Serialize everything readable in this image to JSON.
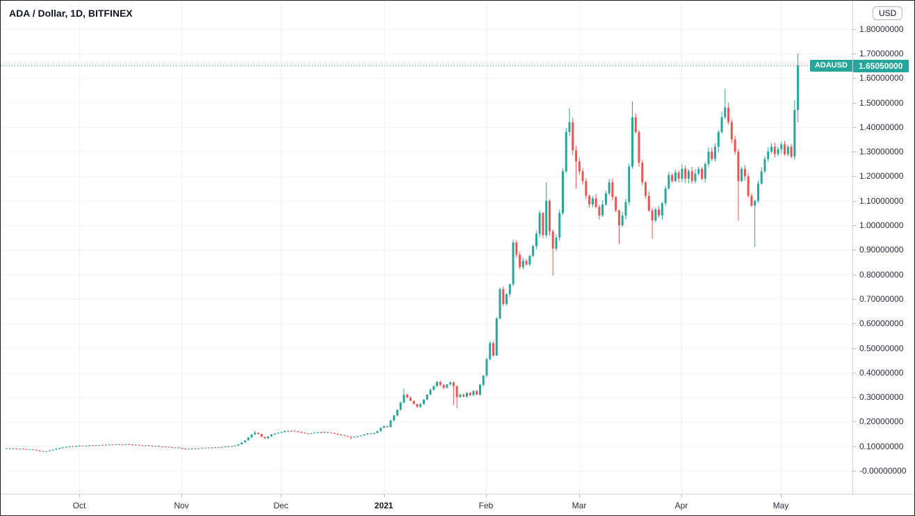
{
  "header": {
    "symbol_title": "ADA / Dollar, 1D, BITFINEX"
  },
  "price_scale": {
    "currency_badge": "USD",
    "tick_labels": [
      "1.80000000",
      "1.70000000",
      "1.60000000",
      "1.50000000",
      "1.40000000",
      "1.30000000",
      "1.20000000",
      "1.10000000",
      "1.00000000",
      "0.90000000",
      "0.80000000",
      "0.70000000",
      "0.60000000",
      "0.50000000",
      "0.40000000",
      "0.30000000",
      "0.20000000",
      "0.10000000",
      "-0.00000000"
    ],
    "tick_prices": [
      1.8,
      1.7,
      1.6,
      1.5,
      1.4,
      1.3,
      1.2,
      1.1,
      1.0,
      0.9,
      0.8,
      0.7,
      0.6,
      0.5,
      0.4,
      0.3,
      0.2,
      0.1,
      0.0
    ],
    "last_price": {
      "symbol_label": "ADAUSD",
      "value_label": "1.65050000",
      "price": 1.6505
    }
  },
  "time_scale": {
    "ticks": [
      {
        "label": "Oct",
        "index": 22,
        "bold": false
      },
      {
        "label": "Nov",
        "index": 53,
        "bold": false
      },
      {
        "label": "Dec",
        "index": 83,
        "bold": false
      },
      {
        "label": "2021",
        "index": 114,
        "bold": true
      },
      {
        "label": "Feb",
        "index": 145,
        "bold": false
      },
      {
        "label": "Mar",
        "index": 173,
        "bold": false
      },
      {
        "label": "Apr",
        "index": 204,
        "bold": false
      },
      {
        "label": "May",
        "index": 234,
        "bold": false
      }
    ]
  },
  "chart_data": {
    "type": "candlestick",
    "title": "ADA / Dollar, 1D, BITFINEX",
    "symbol": "ADAUSD",
    "exchange": "BITFINEX",
    "interval": "1D",
    "quote_currency": "USD",
    "start_date": "2020-09-09",
    "frequency": "daily",
    "ylim": [
      0.0,
      1.8
    ],
    "grid": true,
    "legend_position": "top-left",
    "last_close": 1.6505,
    "up_color": "#26a69a",
    "down_color": "#ef5350",
    "grid_color": "#f0f3fa",
    "price_line_color": "#26a69a",
    "closes": [
      0.092,
      0.09,
      0.091,
      0.089,
      0.09,
      0.088,
      0.086,
      0.087,
      0.085,
      0.083,
      0.08,
      0.078,
      0.08,
      0.083,
      0.086,
      0.09,
      0.093,
      0.095,
      0.097,
      0.1,
      0.098,
      0.101,
      0.103,
      0.101,
      0.102,
      0.104,
      0.103,
      0.105,
      0.104,
      0.106,
      0.105,
      0.107,
      0.106,
      0.108,
      0.107,
      0.106,
      0.108,
      0.107,
      0.105,
      0.106,
      0.104,
      0.103,
      0.104,
      0.102,
      0.1,
      0.101,
      0.099,
      0.097,
      0.098,
      0.096,
      0.094,
      0.095,
      0.093,
      0.09,
      0.088,
      0.089,
      0.091,
      0.09,
      0.092,
      0.094,
      0.093,
      0.095,
      0.094,
      0.096,
      0.095,
      0.097,
      0.099,
      0.098,
      0.1,
      0.103,
      0.108,
      0.115,
      0.124,
      0.136,
      0.148,
      0.155,
      0.15,
      0.138,
      0.132,
      0.14,
      0.148,
      0.152,
      0.155,
      0.158,
      0.162,
      0.16,
      0.163,
      0.161,
      0.158,
      0.155,
      0.152,
      0.15,
      0.153,
      0.155,
      0.157,
      0.155,
      0.158,
      0.156,
      0.154,
      0.151,
      0.148,
      0.145,
      0.142,
      0.139,
      0.136,
      0.138,
      0.141,
      0.144,
      0.148,
      0.152,
      0.15,
      0.154,
      0.162,
      0.175,
      0.182,
      0.178,
      0.205,
      0.225,
      0.248,
      0.278,
      0.31,
      0.298,
      0.285,
      0.272,
      0.26,
      0.272,
      0.29,
      0.31,
      0.33,
      0.345,
      0.362,
      0.35,
      0.338,
      0.352,
      0.36,
      0.345,
      0.3,
      0.31,
      0.302,
      0.318,
      0.308,
      0.325,
      0.31,
      0.35,
      0.388,
      0.455,
      0.52,
      0.47,
      0.62,
      0.74,
      0.68,
      0.72,
      0.76,
      0.93,
      0.88,
      0.83,
      0.855,
      0.84,
      0.875,
      0.915,
      0.965,
      1.05,
      0.96,
      1.1,
      0.975,
      0.905,
      0.95,
      1.05,
      1.22,
      1.38,
      1.42,
      1.305,
      1.26,
      1.22,
      1.18,
      1.12,
      1.085,
      1.11,
      1.075,
      1.04,
      1.085,
      1.13,
      1.175,
      1.115,
      1.06,
      1.0,
      1.04,
      1.095,
      1.24,
      1.44,
      1.38,
      1.255,
      1.175,
      1.12,
      1.06,
      1.02,
      1.065,
      1.04,
      1.09,
      1.15,
      1.205,
      1.18,
      1.215,
      1.19,
      1.23,
      1.19,
      1.22,
      1.18,
      1.21,
      1.23,
      1.19,
      1.25,
      1.3,
      1.27,
      1.32,
      1.38,
      1.44,
      1.48,
      1.42,
      1.35,
      1.3,
      1.18,
      1.23,
      1.2,
      1.12,
      1.08,
      1.1,
      1.17,
      1.22,
      1.27,
      1.3,
      1.32,
      1.29,
      1.31,
      1.33,
      1.29,
      1.32,
      1.28,
      1.47,
      1.6505
    ],
    "wick_overrides": {
      "75": {
        "h": 0.164
      },
      "104": {
        "l": 0.128
      },
      "120": {
        "h": 0.335
      },
      "135": {
        "l": 0.27
      },
      "136": {
        "l": 0.255
      },
      "163": {
        "h": 1.175
      },
      "165": {
        "l": 0.795
      },
      "170": {
        "h": 1.478
      },
      "172": {
        "l": 1.15
      },
      "185": {
        "l": 0.925
      },
      "189": {
        "h": 1.503
      },
      "195": {
        "l": 0.945
      },
      "217": {
        "h": 1.557
      },
      "221": {
        "l": 1.02
      },
      "226": {
        "l": 0.912
      },
      "238": {
        "h": 1.51
      },
      "239": {
        "h": 1.7,
        "l": 1.42
      }
    }
  }
}
